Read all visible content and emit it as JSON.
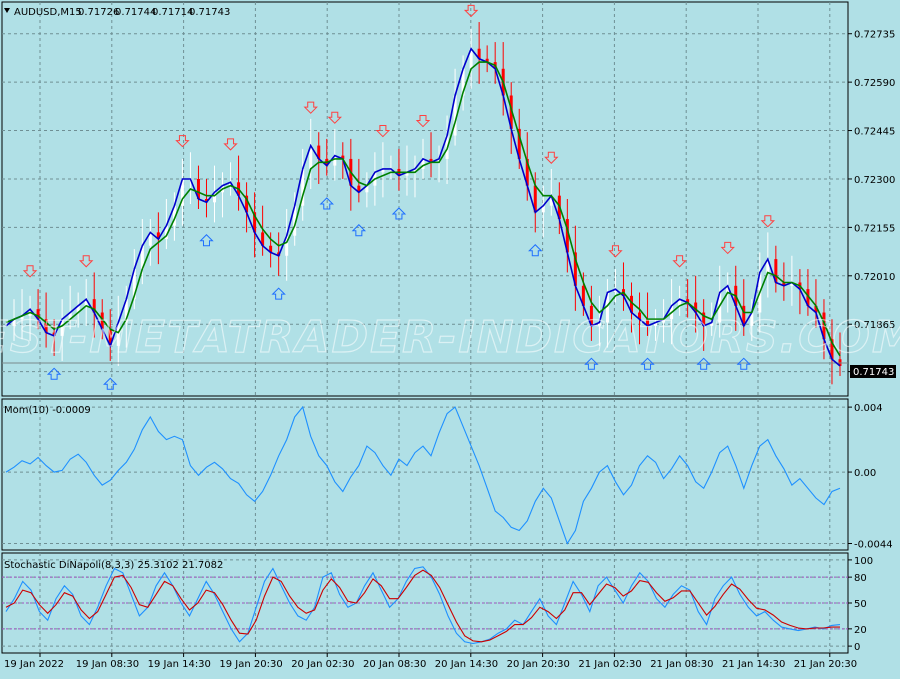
{
  "symbol": "AUDUSD,M15",
  "ohlc": [
    "0.71726",
    "0.71744",
    "0.71714",
    "0.71743"
  ],
  "last_price_label": "0.71743",
  "watermark": "BEST-METATRADER-INDICATORS.COM",
  "colors": {
    "background": "#b0e0e6",
    "bull_candle": "#ffffff",
    "bear_candle": "#ff0000",
    "fast_ma": "#0000cc",
    "slow_ma": "#008000",
    "momentum": "#1e90ff",
    "stoch_main": "#1e90ff",
    "stoch_signal": "#cc0000",
    "level_line": "#a050c0",
    "arrow_down": "#ff4040",
    "arrow_up": "#1e6fff"
  },
  "x_ticks": [
    "19 Jan 2022",
    "19 Jan 08:30",
    "19 Jan 14:30",
    "19 Jan 20:30",
    "20 Jan 02:30",
    "20 Jan 08:30",
    "20 Jan 14:30",
    "20 Jan 20:30",
    "21 Jan 02:30",
    "21 Jan 08:30",
    "21 Jan 14:30",
    "21 Jan 20:30"
  ],
  "chart_data": [
    {
      "type": "line",
      "panel": "price",
      "title": "AUDUSD,M15",
      "y_ticks": [
        0.72735,
        0.7259,
        0.72445,
        0.723,
        0.72155,
        0.7201,
        0.71865,
        0.71723
      ],
      "y_tick_labels": [
        "0.72735",
        "0.72590",
        "0.72445",
        "0.72300",
        "0.72155",
        "0.72010",
        "0.71865",
        "0.71723"
      ],
      "ylim": [
        0.7165,
        0.7283
      ],
      "grid": true,
      "series": [
        {
          "values": [
            0.7186,
            0.7188,
            0.7189,
            0.7191,
            0.7188,
            0.7184,
            0.7183,
            0.7188,
            0.719,
            0.7192,
            0.7194,
            0.719,
            0.7185,
            0.718,
            0.7187,
            0.7194,
            0.7203,
            0.721,
            0.7214,
            0.7212,
            0.7216,
            0.7222,
            0.723,
            0.723,
            0.7224,
            0.7223,
            0.7226,
            0.7228,
            0.7229,
            0.7225,
            0.722,
            0.7214,
            0.721,
            0.7208,
            0.7207,
            0.7213,
            0.7222,
            0.7233,
            0.724,
            0.7236,
            0.7234,
            0.7237,
            0.7236,
            0.7228,
            0.7226,
            0.7228,
            0.7232,
            0.7233,
            0.7233,
            0.7231,
            0.7232,
            0.7233,
            0.7236,
            0.7235,
            0.7236,
            0.7243,
            0.7255,
            0.7263,
            0.7269,
            0.7266,
            0.7265,
            0.7263,
            0.7255,
            0.7245,
            0.7236,
            0.7228,
            0.722,
            0.7222,
            0.7225,
            0.7218,
            0.7208,
            0.7198,
            0.7192,
            0.7186,
            0.7187,
            0.7196,
            0.7197,
            0.7195,
            0.719,
            0.7188,
            0.7186,
            0.7187,
            0.7188,
            0.7192,
            0.7194,
            0.7193,
            0.719,
            0.7186,
            0.7187,
            0.7196,
            0.7198,
            0.7192,
            0.7186,
            0.719,
            0.7202,
            0.7206,
            0.7199,
            0.7198,
            0.7199,
            0.7197,
            0.7192,
            0.719,
            0.7182,
            0.7176,
            0.7174
          ]
        },
        {
          "values": [
            0.7187,
            0.7188,
            0.7189,
            0.719,
            0.7189,
            0.7187,
            0.7185,
            0.7186,
            0.7188,
            0.719,
            0.7192,
            0.7191,
            0.7188,
            0.7185,
            0.7184,
            0.7188,
            0.7195,
            0.7203,
            0.7209,
            0.7211,
            0.7213,
            0.7218,
            0.7224,
            0.7227,
            0.7226,
            0.7225,
            0.7225,
            0.7227,
            0.7228,
            0.7227,
            0.7224,
            0.7219,
            0.7215,
            0.7212,
            0.721,
            0.7211,
            0.7216,
            0.7225,
            0.7233,
            0.7235,
            0.7235,
            0.7236,
            0.7236,
            0.7232,
            0.7229,
            0.7228,
            0.723,
            0.7231,
            0.7232,
            0.7232,
            0.7232,
            0.7232,
            0.7234,
            0.7235,
            0.7235,
            0.7239,
            0.7247,
            0.7256,
            0.7263,
            0.7265,
            0.7265,
            0.7264,
            0.7259,
            0.7251,
            0.7243,
            0.7235,
            0.7228,
            0.7225,
            0.7225,
            0.7222,
            0.7215,
            0.7206,
            0.7199,
            0.7193,
            0.719,
            0.7192,
            0.7195,
            0.7196,
            0.7193,
            0.7191,
            0.7188,
            0.7188,
            0.7188,
            0.719,
            0.7192,
            0.7193,
            0.7191,
            0.7189,
            0.7188,
            0.7192,
            0.7196,
            0.7195,
            0.719,
            0.719,
            0.7196,
            0.7202,
            0.7201,
            0.7199,
            0.7199,
            0.7198,
            0.7195,
            0.7192,
            0.7187,
            0.7181,
            0.7177
          ]
        }
      ]
    },
    {
      "type": "line",
      "panel": "momentum",
      "title": "Mom(10) -0.0009",
      "y_ticks": [
        0.004,
        0.0,
        -0.0044
      ],
      "y_tick_labels": [
        "0.004",
        "0.00",
        "-0.0044"
      ],
      "ylim": [
        -0.0048,
        0.0045
      ],
      "grid": true,
      "series": [
        {
          "values": [
            0.0,
            0.0003,
            0.0007,
            0.0005,
            0.0009,
            0.0004,
            0.0,
            0.0001,
            0.0008,
            0.0011,
            0.0006,
            -0.0002,
            -0.0008,
            -0.0005,
            0.0001,
            0.0006,
            0.0014,
            0.0026,
            0.0034,
            0.0025,
            0.002,
            0.0022,
            0.002,
            0.0004,
            -0.0002,
            0.0003,
            0.0006,
            0.0002,
            -0.0004,
            -0.0007,
            -0.0014,
            -0.0018,
            -0.0012,
            -0.0002,
            0.001,
            0.002,
            0.0034,
            0.004,
            0.0022,
            0.001,
            0.0004,
            -0.0006,
            -0.0012,
            -0.0003,
            0.0004,
            0.0016,
            0.0012,
            0.0004,
            -0.0002,
            0.0008,
            0.0004,
            0.0012,
            0.0016,
            0.001,
            0.0024,
            0.0036,
            0.004,
            0.0028,
            0.0016,
            0.0004,
            -0.001,
            -0.0024,
            -0.0028,
            -0.0034,
            -0.0036,
            -0.003,
            -0.0018,
            -0.001,
            -0.0016,
            -0.003,
            -0.0044,
            -0.0036,
            -0.0018,
            -0.001,
            0.0,
            0.0004,
            -0.0006,
            -0.0014,
            -0.0008,
            0.0004,
            0.001,
            0.0006,
            -0.0004,
            0.0002,
            0.001,
            0.0004,
            -0.0006,
            -0.001,
            0.0,
            0.0012,
            0.0016,
            0.0004,
            -0.001,
            0.0004,
            0.0016,
            0.002,
            0.001,
            0.0002,
            -0.0008,
            -0.0004,
            -0.001,
            -0.0016,
            -0.002,
            -0.0012,
            -0.001
          ]
        }
      ]
    },
    {
      "type": "line",
      "panel": "stochastic",
      "title": "Stochastic DiNapoli(8,3,3) 25.3102 21.7082",
      "y_ticks": [
        100,
        80,
        50,
        20,
        0
      ],
      "y_tick_labels": [
        "100",
        "80",
        "50",
        "20",
        "0"
      ],
      "levels": [
        80,
        50,
        20
      ],
      "ylim": [
        -8,
        108
      ],
      "grid": true,
      "series": [
        {
          "values": [
            40,
            55,
            75,
            65,
            40,
            30,
            55,
            70,
            60,
            35,
            25,
            45,
            70,
            90,
            85,
            60,
            35,
            45,
            70,
            85,
            70,
            50,
            35,
            55,
            75,
            60,
            40,
            20,
            5,
            15,
            45,
            75,
            90,
            70,
            50,
            35,
            30,
            45,
            80,
            85,
            60,
            45,
            50,
            70,
            85,
            65,
            45,
            55,
            75,
            90,
            92,
            80,
            60,
            35,
            15,
            5,
            3,
            5,
            8,
            15,
            20,
            30,
            25,
            40,
            55,
            35,
            25,
            50,
            75,
            60,
            40,
            70,
            80,
            65,
            50,
            70,
            85,
            75,
            55,
            45,
            60,
            70,
            65,
            40,
            25,
            55,
            70,
            80,
            60,
            45,
            35,
            40,
            30,
            22,
            20,
            18,
            20,
            22,
            20,
            24,
            25
          ]
        },
        {
          "values": [
            45,
            50,
            65,
            62,
            48,
            38,
            48,
            62,
            58,
            42,
            32,
            40,
            60,
            80,
            82,
            68,
            48,
            45,
            60,
            75,
            70,
            55,
            42,
            50,
            65,
            62,
            48,
            30,
            15,
            14,
            30,
            58,
            80,
            75,
            58,
            45,
            38,
            42,
            65,
            78,
            68,
            52,
            50,
            62,
            78,
            70,
            55,
            55,
            68,
            82,
            88,
            82,
            68,
            48,
            28,
            12,
            6,
            5,
            7,
            12,
            17,
            25,
            25,
            33,
            45,
            40,
            32,
            42,
            62,
            62,
            48,
            60,
            72,
            68,
            58,
            64,
            76,
            74,
            62,
            52,
            56,
            64,
            64,
            50,
            36,
            46,
            60,
            72,
            66,
            54,
            44,
            42,
            36,
            28,
            24,
            21,
            20,
            21,
            21,
            22,
            22
          ]
        }
      ]
    }
  ]
}
